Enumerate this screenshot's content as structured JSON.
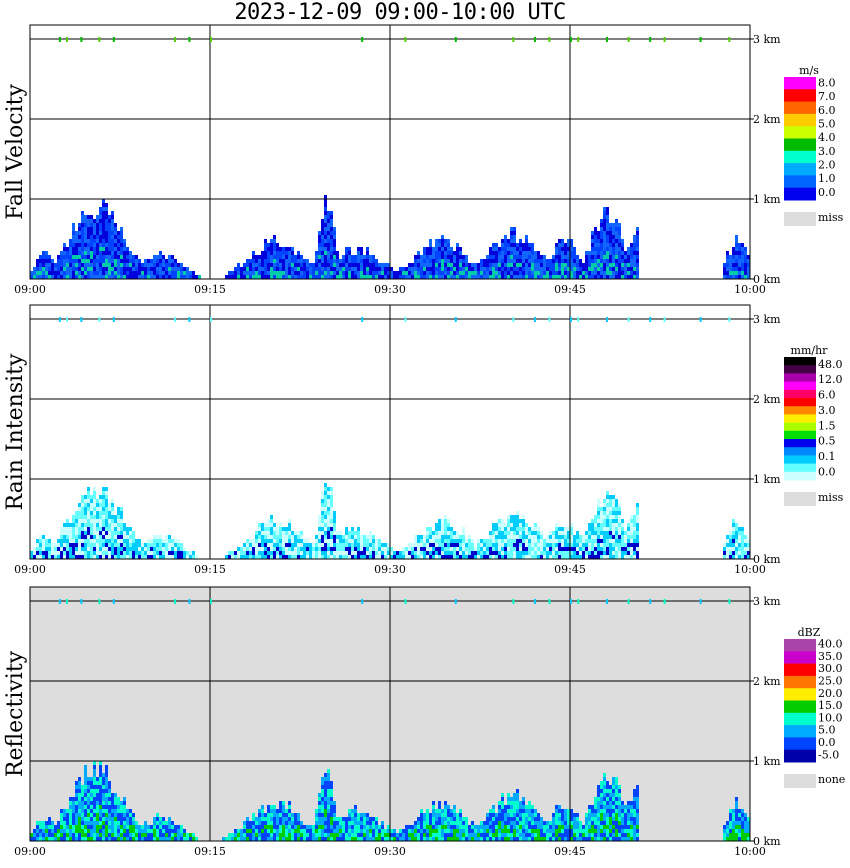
{
  "title": "2023-12-09   09:00-10:00 UTC",
  "time_ticks": [
    "09:00",
    "09:15",
    "09:30",
    "09:45",
    "10:00"
  ],
  "height_ticks": [
    "0 km",
    "1 km",
    "2 km",
    "3 km"
  ],
  "panels": [
    {
      "ylabel": "Fall Velocity",
      "background": "#ffffff",
      "legend_unit": "m/s",
      "legend_labels": [
        "8.0",
        "7.0",
        "6.0",
        "5.0",
        "4.0",
        "3.0",
        "2.0",
        "1.0",
        "0.0"
      ],
      "legend_colors": [
        "#ff00ff",
        "#ff0000",
        "#ff6600",
        "#ffcc00",
        "#ccff00",
        "#00bb00",
        "#00ffcc",
        "#00aaff",
        "#0066ff",
        "#0000ee"
      ],
      "miss_label": "miss",
      "miss_color": "#dddddd",
      "echo_colors": [
        "#0000dd",
        "#0044ff",
        "#1166ff"
      ],
      "accent_color": "#00ccaa",
      "top_marker_colors": [
        "#00bb00",
        "#55cc00"
      ]
    },
    {
      "ylabel": "Rain Intensity",
      "background": "#ffffff",
      "legend_unit": "mm/hr",
      "legend_labels": [
        "48.0",
        "12.0",
        "6.0",
        "3.0",
        "1.5",
        "0.5",
        "0.1",
        "0.0"
      ],
      "legend_colors": [
        "#000000",
        "#440044",
        "#aa00aa",
        "#ff00ff",
        "#ff0066",
        "#ff0000",
        "#ff8800",
        "#ffee00",
        "#aaff00",
        "#00dd00",
        "#0000ee",
        "#0088ff",
        "#00ccff",
        "#66ffff",
        "#ccffff"
      ],
      "miss_label": "miss",
      "miss_color": "#dddddd",
      "echo_colors": [
        "#ccffff",
        "#66ffff",
        "#00ccff"
      ],
      "accent_color": "#0000cc",
      "top_marker_colors": [
        "#00ccff",
        "#66ffff"
      ]
    },
    {
      "ylabel": "Reflectivity",
      "background": "#dddddd",
      "legend_unit": "dBZ",
      "legend_labels": [
        "40.0",
        "35.0",
        "30.0",
        "25.0",
        "20.0",
        "15.0",
        "10.0",
        "5.0",
        "0.0",
        "-5.0"
      ],
      "legend_colors": [
        "#aa44aa",
        "#cc00cc",
        "#ff0000",
        "#ff7700",
        "#ffee00",
        "#00cc00",
        "#00ffcc",
        "#00aaff",
        "#0044ff",
        "#0000aa"
      ],
      "miss_label": "none",
      "miss_color": "#dddddd",
      "echo_colors": [
        "#0044ff",
        "#00aaff",
        "#00ffcc"
      ],
      "accent_color": "#00cc00",
      "top_marker_colors": [
        "#00ccff",
        "#00ffcc"
      ]
    }
  ]
}
